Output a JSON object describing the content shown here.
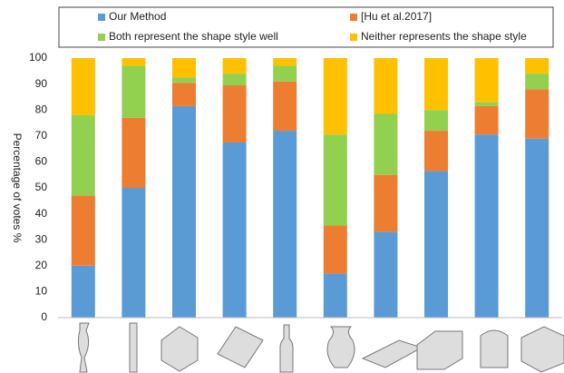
{
  "chart_data": {
    "type": "stacked_bar",
    "y_label": "Percentage of votes  %",
    "categories": [
      null,
      null,
      null,
      null,
      null,
      null,
      null,
      null,
      null,
      null
    ],
    "series": [
      {
        "name": "Our Method",
        "color": "#5b9bd5",
        "values": [
          20,
          50,
          81.5,
          67.5,
          72,
          17,
          33,
          56.5,
          70.5,
          69
        ]
      },
      {
        "name": "[Hu et al.2017]",
        "color": "#ed7d31",
        "values": [
          27,
          27,
          9,
          22,
          19,
          18.5,
          22,
          15.5,
          11,
          19
        ]
      },
      {
        "name": "Both represent the shape style well",
        "color": "#92d050",
        "values": [
          31,
          20,
          2,
          4.5,
          6,
          35,
          23.5,
          8,
          1.5,
          6
        ]
      },
      {
        "name": "Neither  represents the shape style",
        "color": "#ffc000",
        "values": [
          22,
          3,
          7.5,
          6,
          3,
          29.5,
          21.5,
          20,
          17,
          6
        ]
      }
    ],
    "ylim": [
      0,
      100
    ],
    "yticks": [
      0,
      10,
      20,
      30,
      40,
      50,
      60,
      70,
      80,
      90,
      100
    ],
    "grid": false,
    "legend": "top"
  }
}
